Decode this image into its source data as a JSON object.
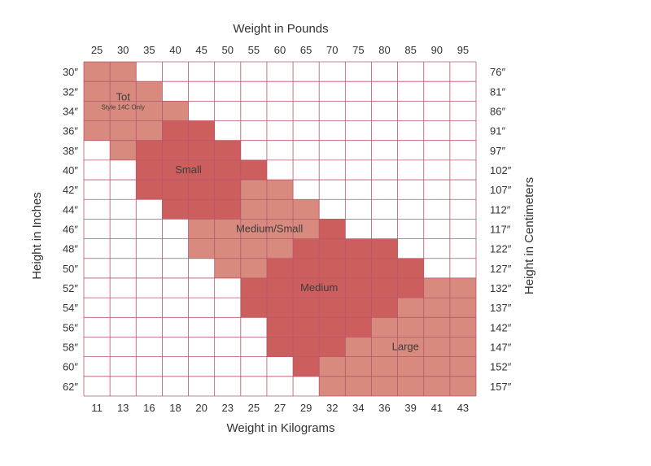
{
  "chart_data": {
    "type": "heatmap",
    "top_axis_title": "Weight in Pounds",
    "bottom_axis_title": "Weight in Kilograms",
    "left_axis_title": "Height in Inches",
    "right_axis_title": "Height in Centimeters",
    "weight_lbs_ticks": [
      "25",
      "30",
      "35",
      "40",
      "45",
      "50",
      "55",
      "60",
      "65",
      "70",
      "75",
      "80",
      "85",
      "90",
      "95"
    ],
    "weight_kg_ticks": [
      "11",
      "13",
      "16",
      "18",
      "20",
      "23",
      "25",
      "27",
      "29",
      "32",
      "34",
      "36",
      "39",
      "41",
      "43"
    ],
    "height_in_ticks": [
      "30″",
      "32″",
      "34″",
      "36″",
      "38″",
      "40″",
      "42″",
      "44″",
      "46″",
      "48″",
      "50″",
      "52″",
      "54″",
      "56″",
      "58″",
      "60″",
      "62″"
    ],
    "height_cm_ticks": [
      "76″",
      "81″",
      "86″",
      "91″",
      "97″",
      "102″",
      "107″",
      "112″",
      "117″",
      "122″",
      "127″",
      "132″",
      "137″",
      "142″",
      "147″",
      "152″",
      "157″"
    ],
    "columns": 15,
    "zones": [
      {
        "name": "Tot",
        "note": "Style 14C Only",
        "color": "#d98a7e",
        "cells": [
          [
            0,
            0,
            1
          ],
          [
            1,
            0,
            2
          ],
          [
            2,
            0,
            3
          ],
          [
            3,
            0,
            2
          ],
          [
            4,
            1,
            1
          ]
        ]
      },
      {
        "name": "Small",
        "color": "#cc5f5d",
        "cells": [
          [
            3,
            3,
            4
          ],
          [
            4,
            2,
            5
          ],
          [
            5,
            2,
            6
          ],
          [
            6,
            2,
            5
          ],
          [
            7,
            3,
            5
          ]
        ]
      },
      {
        "name": "Medium/Small",
        "color": "#d98a7e",
        "cells": [
          [
            6,
            6,
            7
          ],
          [
            7,
            6,
            8
          ],
          [
            8,
            4,
            8
          ],
          [
            9,
            4,
            7
          ],
          [
            10,
            5,
            6
          ]
        ]
      },
      {
        "name": "Medium",
        "color": "#cc5f5d",
        "cells": [
          [
            8,
            9,
            9
          ],
          [
            9,
            8,
            11
          ],
          [
            10,
            7,
            12
          ],
          [
            11,
            6,
            12
          ],
          [
            12,
            6,
            11
          ],
          [
            13,
            7,
            10
          ],
          [
            14,
            7,
            9
          ],
          [
            15,
            8,
            8
          ]
        ]
      },
      {
        "name": "Large",
        "color": "#d98a7e",
        "cells": [
          [
            11,
            13,
            14
          ],
          [
            12,
            12,
            14
          ],
          [
            13,
            11,
            14
          ],
          [
            14,
            10,
            14
          ],
          [
            15,
            9,
            14
          ],
          [
            16,
            9,
            14
          ]
        ]
      }
    ]
  }
}
